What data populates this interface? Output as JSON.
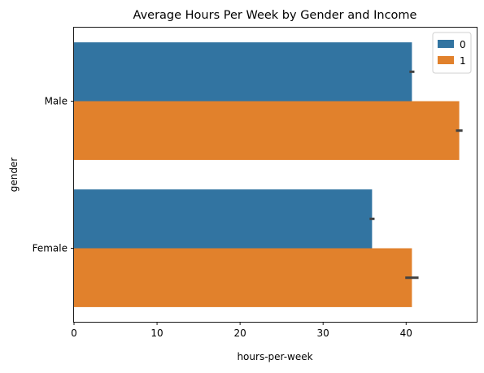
{
  "chart_data": {
    "type": "bar",
    "orientation": "horizontal",
    "title": "Average Hours Per Week by Gender and Income",
    "xlabel": "hours-per-week",
    "ylabel": "gender",
    "categories": [
      "Male",
      "Female"
    ],
    "series": [
      {
        "name": "0",
        "color": "#3274a1",
        "values": [
          40.7,
          35.9
        ],
        "error": [
          0.3,
          0.3
        ]
      },
      {
        "name": "1",
        "color": "#e1812c",
        "values": [
          46.4,
          40.7
        ],
        "error": [
          0.4,
          0.8
        ]
      }
    ],
    "xlim": [
      0,
      48.5
    ],
    "xticks": [
      0,
      10,
      20,
      30,
      40
    ],
    "legend": {
      "placement": "top-right"
    },
    "grid": false
  }
}
